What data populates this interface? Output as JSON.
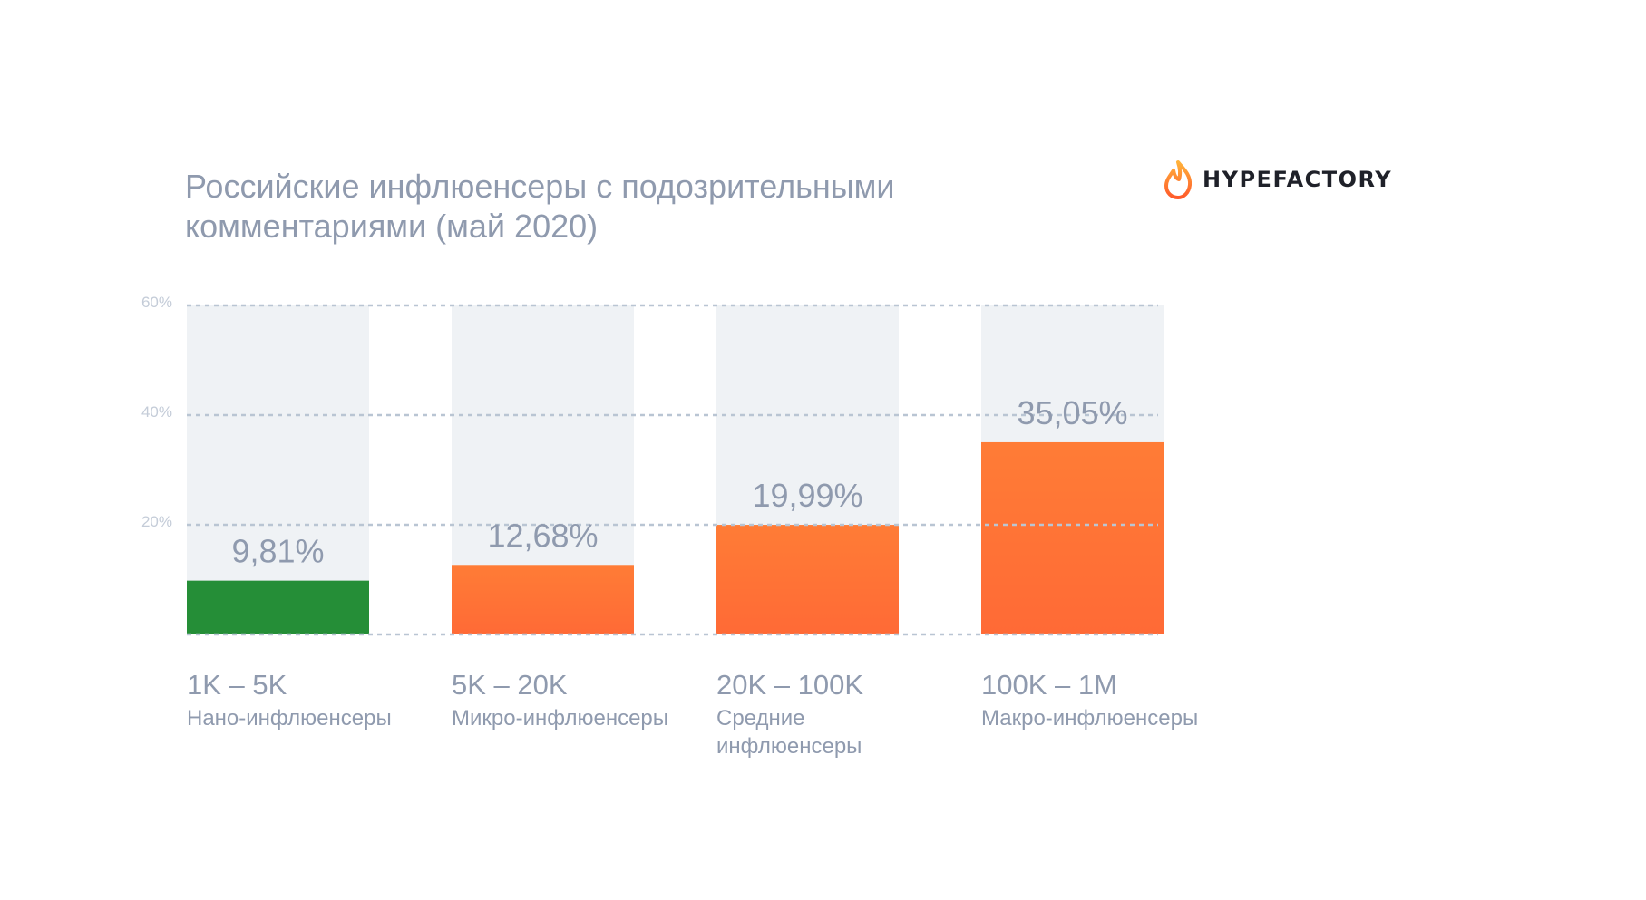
{
  "title": {
    "line1": "Российские инфлюенсеры с подозрительными",
    "line2": "комментариями (май 2020)"
  },
  "logo": {
    "text": "HYPEFACTORY",
    "icon": "flame-icon"
  },
  "colors": {
    "green": "#258e37",
    "orange_top": "#ff7c36",
    "orange_bottom": "#ff6a36",
    "background_column": "#eff2f5",
    "grid": "#b9c5d3",
    "label_grey": "#8f9aae",
    "tick_grey": "#c4ccd8"
  },
  "chart_data": {
    "type": "bar",
    "title": "Российские инфлюенсеры с подозрительными комментариями (май 2020)",
    "ylim": [
      0,
      60
    ],
    "y_ticks": [
      20,
      40,
      60
    ],
    "y_tick_labels": [
      "20%",
      "40%",
      "60%"
    ],
    "grid": "horizontal dashed",
    "categories": [
      "1K – 5K",
      "5K – 20K",
      "20K – 100K",
      "100K – 1M"
    ],
    "subcategories": [
      [
        "Нано-инфлюенсеры"
      ],
      [
        "Микро-инфлюенсеры"
      ],
      [
        "Средние",
        "инфлюенсеры"
      ],
      [
        "Макро-инфлюенсеры"
      ]
    ],
    "values": [
      9.81,
      12.68,
      19.99,
      35.05
    ],
    "value_labels": [
      "9,81%",
      "12,68%",
      "19,99%",
      "35,05%"
    ],
    "bar_colors": [
      "green",
      "orange",
      "orange",
      "orange"
    ]
  }
}
